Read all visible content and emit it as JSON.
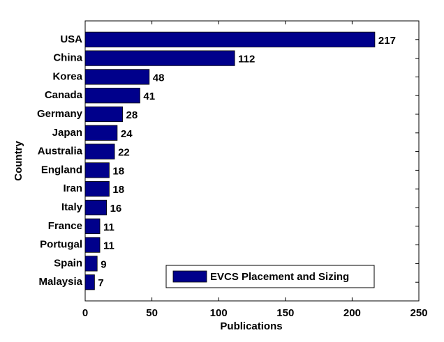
{
  "chart_data": {
    "type": "bar",
    "orientation": "horizontal",
    "x_label": "Publications",
    "y_label": "Country",
    "categories": [
      "USA",
      "China",
      "Korea",
      "Canada",
      "Germany",
      "Japan",
      "Australia",
      "England",
      "Iran",
      "Italy",
      "France",
      "Portugal",
      "Spain",
      "Malaysia"
    ],
    "series": [
      {
        "name": "EVCS Placement and Sizing",
        "color": "#00008b",
        "values": [
          217,
          112,
          48,
          41,
          28,
          24,
          22,
          18,
          18,
          16,
          11,
          11,
          9,
          7
        ]
      }
    ],
    "xlim": [
      0,
      250
    ],
    "xticks": [
      0,
      50,
      100,
      150,
      200,
      250
    ],
    "legend": "lower right",
    "grid": false
  }
}
